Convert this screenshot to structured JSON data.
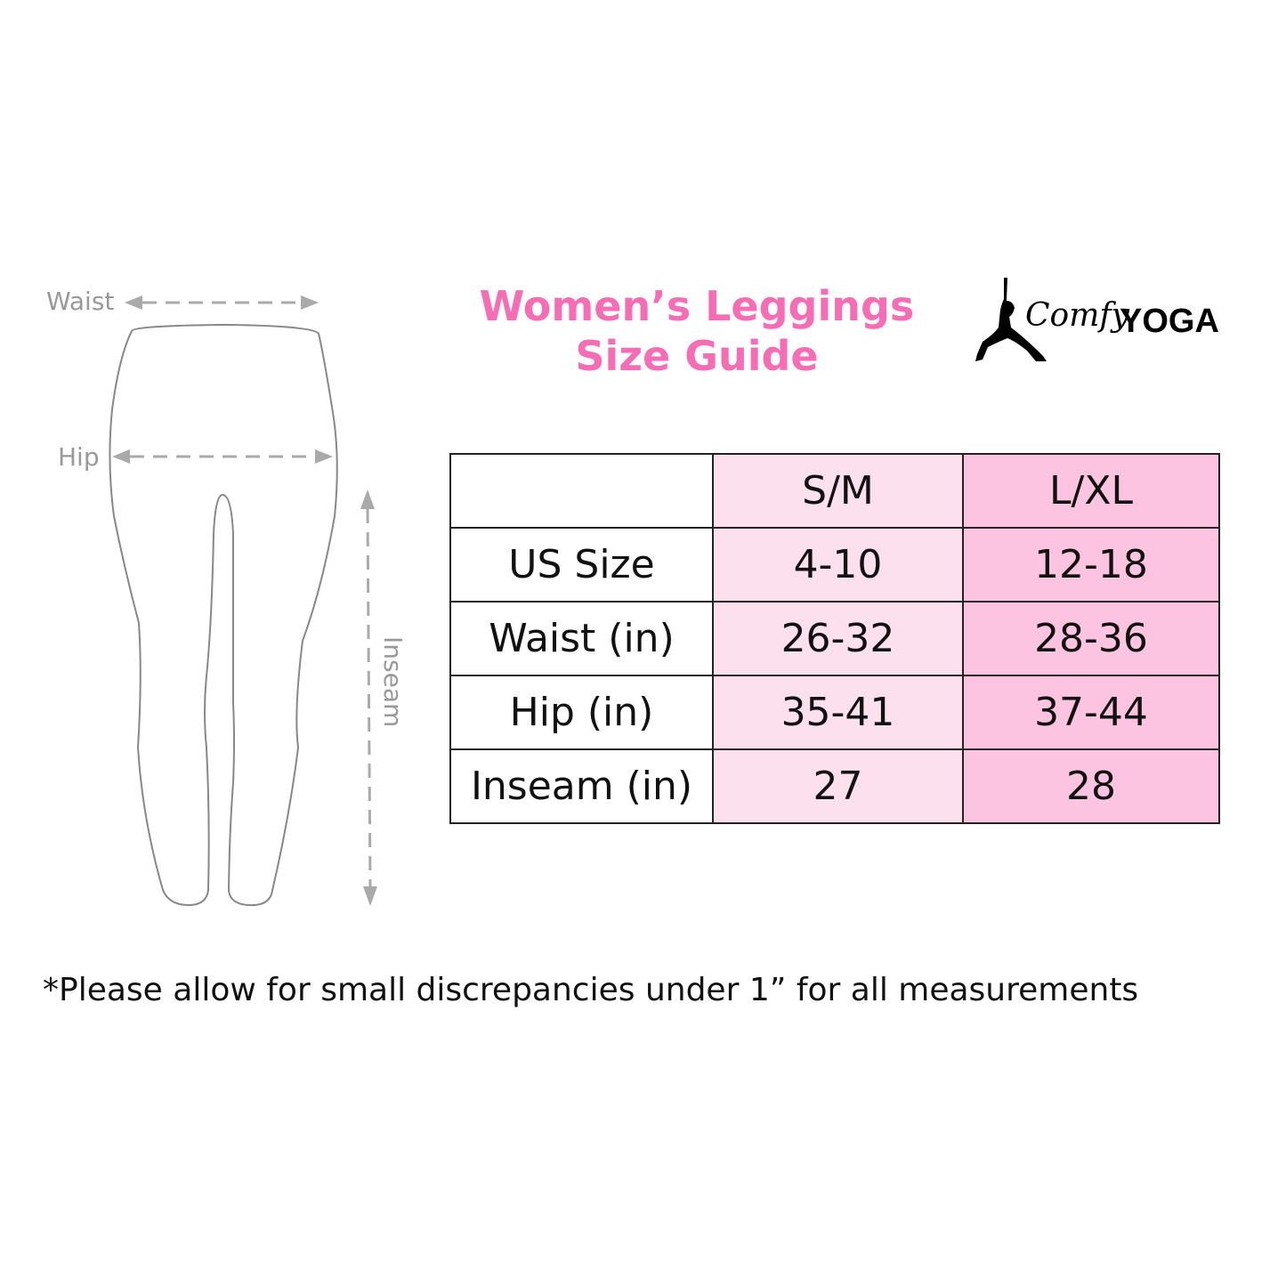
{
  "title": {
    "line1": "Women’s Leggings",
    "line2": "Size Guide"
  },
  "logo": {
    "text_script": "Comfy",
    "text_bold": "YOGA"
  },
  "diagram": {
    "labels": {
      "waist": "Waist",
      "hip": "Hip",
      "inseam": "Inseam"
    }
  },
  "table": {
    "headers": [
      "",
      "S/M",
      "L/XL"
    ],
    "rows": [
      [
        "US Size",
        "4-10",
        "12-18"
      ],
      [
        "Waist (in)",
        "26-32",
        "28-36"
      ],
      [
        "Hip (in)",
        "35-41",
        "37-44"
      ],
      [
        "Inseam (in)",
        "27",
        "28"
      ]
    ]
  },
  "note": "*Please allow for small discrepancies under 1” for all measurements",
  "colors": {
    "title": "#f66db5",
    "col_sm": "#fde0ee",
    "col_lxl": "#fcc4e0"
  }
}
